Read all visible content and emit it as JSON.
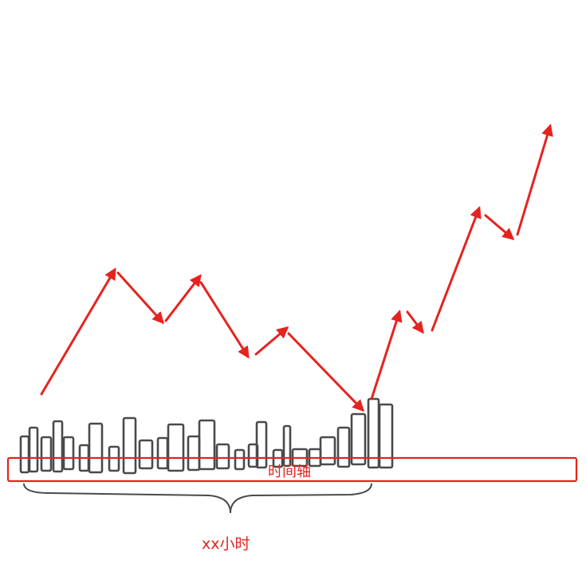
{
  "diagram": {
    "axis_label": "时间轴",
    "duration_label": "xx小时",
    "colors": {
      "trend": "#e5231f",
      "bars": "#4a4a4a",
      "axis_box": "#e5231f",
      "brace": "#4a4a4a",
      "text": "#e5231f"
    }
  }
}
